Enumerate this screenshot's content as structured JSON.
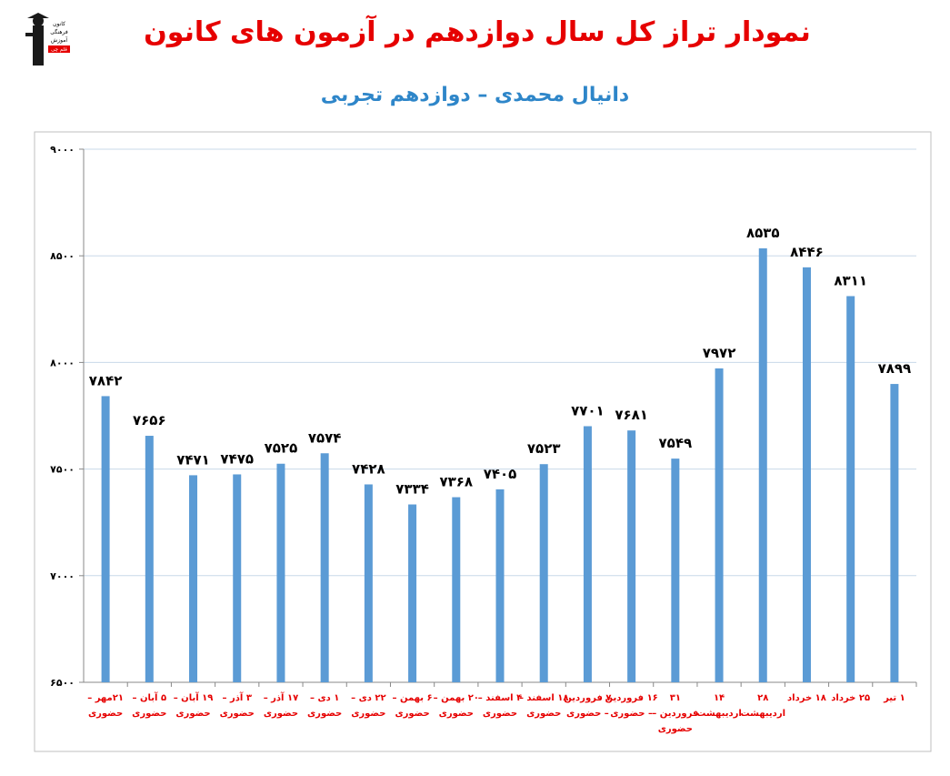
{
  "header": {
    "title": "نمودار تراز کل سال دوازدهم در آزمون های کانون",
    "subtitle": "دانیال محمدی – دوازدهم تجربی",
    "logo_text": [
      "کانون",
      "فرهنگی",
      "آموزش",
      "قلم چی"
    ]
  },
  "colors": {
    "title": "#e60000",
    "subtitle": "#2e86c9",
    "bar": "#5b9bd5",
    "category": "#e60000",
    "grid": "#c8d8e8"
  },
  "chart_data": {
    "type": "bar",
    "ylim": [
      6500,
      9000
    ],
    "yticks": [
      6500,
      7000,
      7500,
      8000,
      8500,
      9000
    ],
    "ytick_labels": [
      "۶۵۰۰",
      "۷۰۰۰",
      "۷۵۰۰",
      "۸۰۰۰",
      "۸۵۰۰",
      "۹۰۰۰"
    ],
    "grid": true,
    "categories": [
      [
        "۲۱مهر –",
        "حضوری"
      ],
      [
        "۵ آبان –",
        "حضوری"
      ],
      [
        "۱۹ آبان –",
        "حضوری"
      ],
      [
        "۳ آذر –",
        "حضوری"
      ],
      [
        "۱۷ آذر –",
        "حضوری"
      ],
      [
        "۱ دی –",
        "حضوری"
      ],
      [
        "۲۲ دی –",
        "حضوری"
      ],
      [
        "۶ بهمن –",
        "حضوری"
      ],
      [
        "۲۰ بهمن –",
        "حضوری"
      ],
      [
        "۴ اسفند –",
        "حضوری"
      ],
      [
        "۱۸ اسفند –",
        "حضوری"
      ],
      [
        "۷ فروردین",
        "– حضوری"
      ],
      [
        "۱۶ فروردین",
        "– حضوری"
      ],
      [
        "۳۱",
        "فروردین –",
        "حضوری"
      ],
      [
        "۱۴",
        "اردیبهشت"
      ],
      [
        "۲۸",
        "اردیبهشت"
      ],
      [
        "۱۸ خرداد"
      ],
      [
        "۲۵ خرداد"
      ],
      [
        "۱ تیر"
      ]
    ],
    "values": [
      7842,
      7656,
      7471,
      7475,
      7525,
      7574,
      7428,
      7334,
      7368,
      7405,
      7523,
      7701,
      7681,
      7549,
      7972,
      8535,
      8446,
      8311,
      7899
    ],
    "value_labels": [
      "۷۸۴۲",
      "۷۶۵۶",
      "۷۴۷۱",
      "۷۴۷۵",
      "۷۵۲۵",
      "۷۵۷۴",
      "۷۴۲۸",
      "۷۳۳۴",
      "۷۳۶۸",
      "۷۴۰۵",
      "۷۵۲۳",
      "۷۷۰۱",
      "۷۶۸۱",
      "۷۵۴۹",
      "۷۹۷۲",
      "۸۵۳۵",
      "۸۴۴۶",
      "۸۳۱۱",
      "۷۸۹۹"
    ]
  }
}
